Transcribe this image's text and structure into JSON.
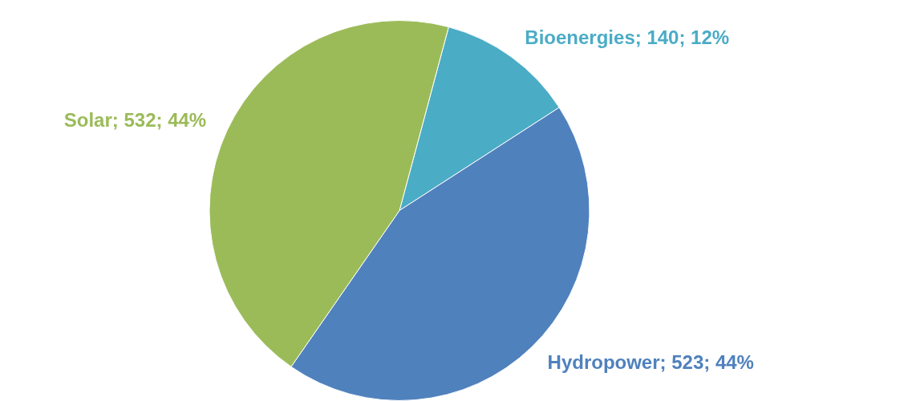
{
  "chart_data": {
    "type": "pie",
    "categories": [
      "Bioenergies",
      "Hydropower",
      "Solar"
    ],
    "values": [
      140,
      523,
      532
    ],
    "colors": [
      "#4bacc6",
      "#4f81bd",
      "#9bbb59"
    ],
    "value_labels": [
      "140; 12%",
      "523; 44%",
      "532; 44%"
    ],
    "legend": false
  }
}
